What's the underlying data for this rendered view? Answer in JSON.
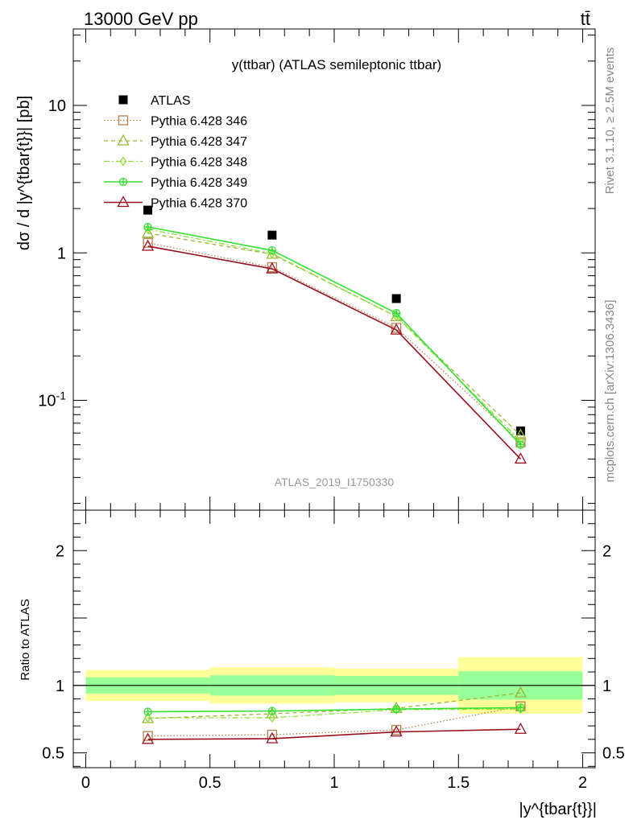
{
  "header": {
    "energy_label": "13000 GeV pp",
    "process_label": "tt̄",
    "rivet_label": "Rivet 3.1.10, ≥ 2.5M events",
    "source_label": "mcplots.cern.ch [arXiv:1306.3436]",
    "analysis_watermark": "ATLAS_2019_I1750330"
  },
  "colors": {
    "ATLAS": "#000000",
    "Pythia 6.428 346": "#b8804a",
    "Pythia 6.428 347": "#99b833",
    "Pythia 6.428 348": "#8ee033",
    "Pythia 6.428 349": "#33e033",
    "Pythia 6.428 370": "#990f1f",
    "band_outer": "#ffff99",
    "band_inner": "#99ff99"
  },
  "chart_data": [
    {
      "type": "line",
      "title": "y(ttbar) (ATLAS semileptonic ttbar)",
      "ylabel": "dσ / d |y^{tbar{t}}| [pb]",
      "yscale": "log",
      "ylim": [
        0.018,
        33
      ],
      "xlim": [
        -0.05,
        2.05
      ],
      "y_ticks": [
        {
          "value": 10,
          "label": "10"
        },
        {
          "value": 1,
          "label": "1"
        },
        {
          "value": 0.1,
          "label": "10^-1"
        }
      ],
      "legend_position": "top-left",
      "x": [
        0.25,
        0.75,
        1.25,
        1.75
      ],
      "series": [
        {
          "name": "ATLAS",
          "marker": "filled-square",
          "values": [
            1.95,
            1.32,
            0.49,
            0.062
          ]
        },
        {
          "name": "Pythia 6.428 346",
          "marker": "open-square",
          "line": "dotted",
          "values": [
            1.17,
            0.8,
            0.31,
            0.052
          ]
        },
        {
          "name": "Pythia 6.428 347",
          "marker": "open-triangle",
          "line": "dashed",
          "values": [
            1.36,
            0.98,
            0.37,
            0.058
          ]
        },
        {
          "name": "Pythia 6.428 348",
          "marker": "open-diamond",
          "line": "dash-dot",
          "values": [
            1.45,
            0.99,
            0.37,
            0.053
          ]
        },
        {
          "name": "Pythia 6.428 349",
          "marker": "open-circle-cross",
          "line": "solid",
          "values": [
            1.5,
            1.04,
            0.39,
            0.05
          ]
        },
        {
          "name": "Pythia 6.428 370",
          "marker": "open-triangle",
          "line": "solid",
          "values": [
            1.11,
            0.78,
            0.3,
            0.04
          ]
        }
      ]
    },
    {
      "type": "line",
      "ylabel": "Ratio to ATLAS",
      "xlabel": "|y^{tbar{t}}|",
      "ylim": [
        0.39,
        2.3
      ],
      "xlim": [
        -0.05,
        2.05
      ],
      "y_ticks": [
        {
          "value": 2,
          "label": "2"
        },
        {
          "value": 1,
          "label": "1"
        },
        {
          "value": 0.5,
          "label": "0.5"
        }
      ],
      "x_ticks": [
        {
          "value": 0,
          "label": "0"
        },
        {
          "value": 0.5,
          "label": "0.5"
        },
        {
          "value": 1,
          "label": "1"
        },
        {
          "value": 1.5,
          "label": "1.5"
        },
        {
          "value": 2,
          "label": "2"
        }
      ],
      "uncertainty_bands": [
        {
          "x_low": 0.0,
          "x_high": 0.5,
          "outer": [
            0.885,
            1.115
          ],
          "inner": [
            0.94,
            1.06
          ]
        },
        {
          "x_low": 0.5,
          "x_high": 1.0,
          "outer": [
            0.865,
            1.135
          ],
          "inner": [
            0.925,
            1.075
          ]
        },
        {
          "x_low": 1.0,
          "x_high": 1.5,
          "outer": [
            0.875,
            1.125
          ],
          "inner": [
            0.93,
            1.07
          ]
        },
        {
          "x_low": 1.5,
          "x_high": 2.0,
          "outer": [
            0.79,
            1.21
          ],
          "inner": [
            0.895,
            1.105
          ]
        }
      ],
      "x": [
        0.25,
        0.75,
        1.25,
        1.75
      ],
      "series": [
        {
          "name": "Pythia 6.428 346",
          "values": [
            0.625,
            0.635,
            0.67,
            0.845
          ]
        },
        {
          "name": "Pythia 6.428 347",
          "values": [
            0.755,
            0.79,
            0.83,
            0.945
          ]
        },
        {
          "name": "Pythia 6.428 348",
          "values": [
            0.76,
            0.76,
            0.82,
            0.825
          ]
        },
        {
          "name": "Pythia 6.428 349",
          "values": [
            0.805,
            0.81,
            0.825,
            0.835
          ]
        },
        {
          "name": "Pythia 6.428 370",
          "values": [
            0.6,
            0.605,
            0.655,
            0.675
          ]
        }
      ]
    }
  ]
}
